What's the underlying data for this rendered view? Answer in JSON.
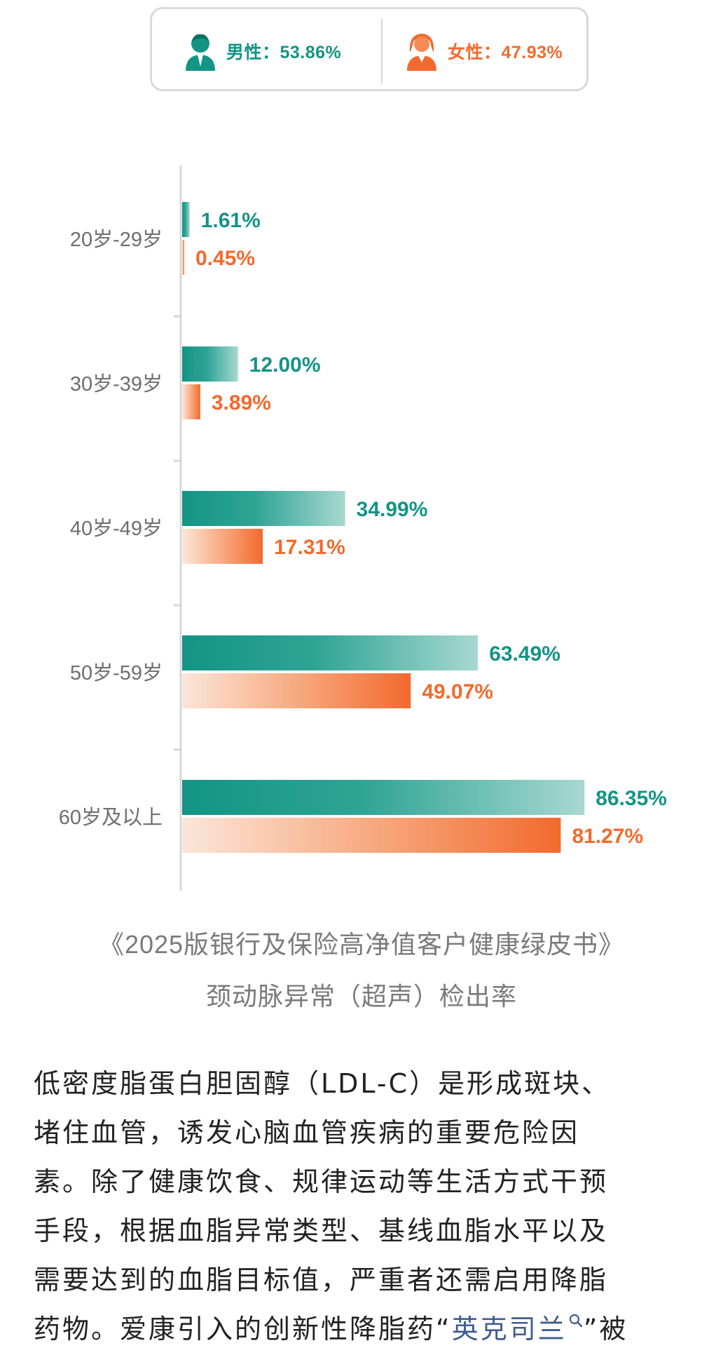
{
  "legend": {
    "male_label": "男性：53.86%",
    "female_label": "女性：47.93%"
  },
  "colors": {
    "male": "#139485",
    "female": "#f26a2e",
    "axis": "#d7d7d7",
    "tick_label": "#6e6e6e"
  },
  "chart_data": {
    "type": "bar",
    "orientation": "horizontal",
    "categories": [
      "20岁-29岁",
      "30岁-39岁",
      "40岁-49岁",
      "50岁-59岁",
      "60岁及以上"
    ],
    "series": [
      {
        "name": "男性",
        "values": [
          1.61,
          12.0,
          34.99,
          63.49,
          86.35
        ],
        "labels": [
          "1.61%",
          "12.00%",
          "34.99%",
          "63.49%",
          "86.35%"
        ],
        "color": "#139485"
      },
      {
        "name": "女性",
        "values": [
          0.45,
          3.89,
          17.31,
          49.07,
          81.27
        ],
        "labels": [
          "0.45%",
          "3.89%",
          "17.31%",
          "49.07%",
          "81.27%"
        ],
        "color": "#f26a2e"
      }
    ],
    "xlim": [
      0,
      100
    ],
    "grid": false,
    "legend_position": "top"
  },
  "caption": {
    "line1": "《2025版银行及保险高净值客户健康绿皮书》",
    "line2": "颈动脉异常（超声）检出率"
  },
  "body": {
    "line1": "低密度脂蛋白胆固醇（LDL-C）是形成斑块、",
    "line2": "堵住血管，诱发心脑血管疾病的重要危险因",
    "line3": "素。除了健康饮食、规律运动等生活方式干预",
    "line4": "手段，根据血脂异常类型、基线血脂水平以及",
    "line5": "需要达到的血脂目标值，严重者还需启用降脂",
    "line6_before": "药物。爱康引入的创新性降脂药“",
    "line6_link": "英克司兰",
    "line6_after": "”被",
    "link_icon": "search-icon"
  }
}
